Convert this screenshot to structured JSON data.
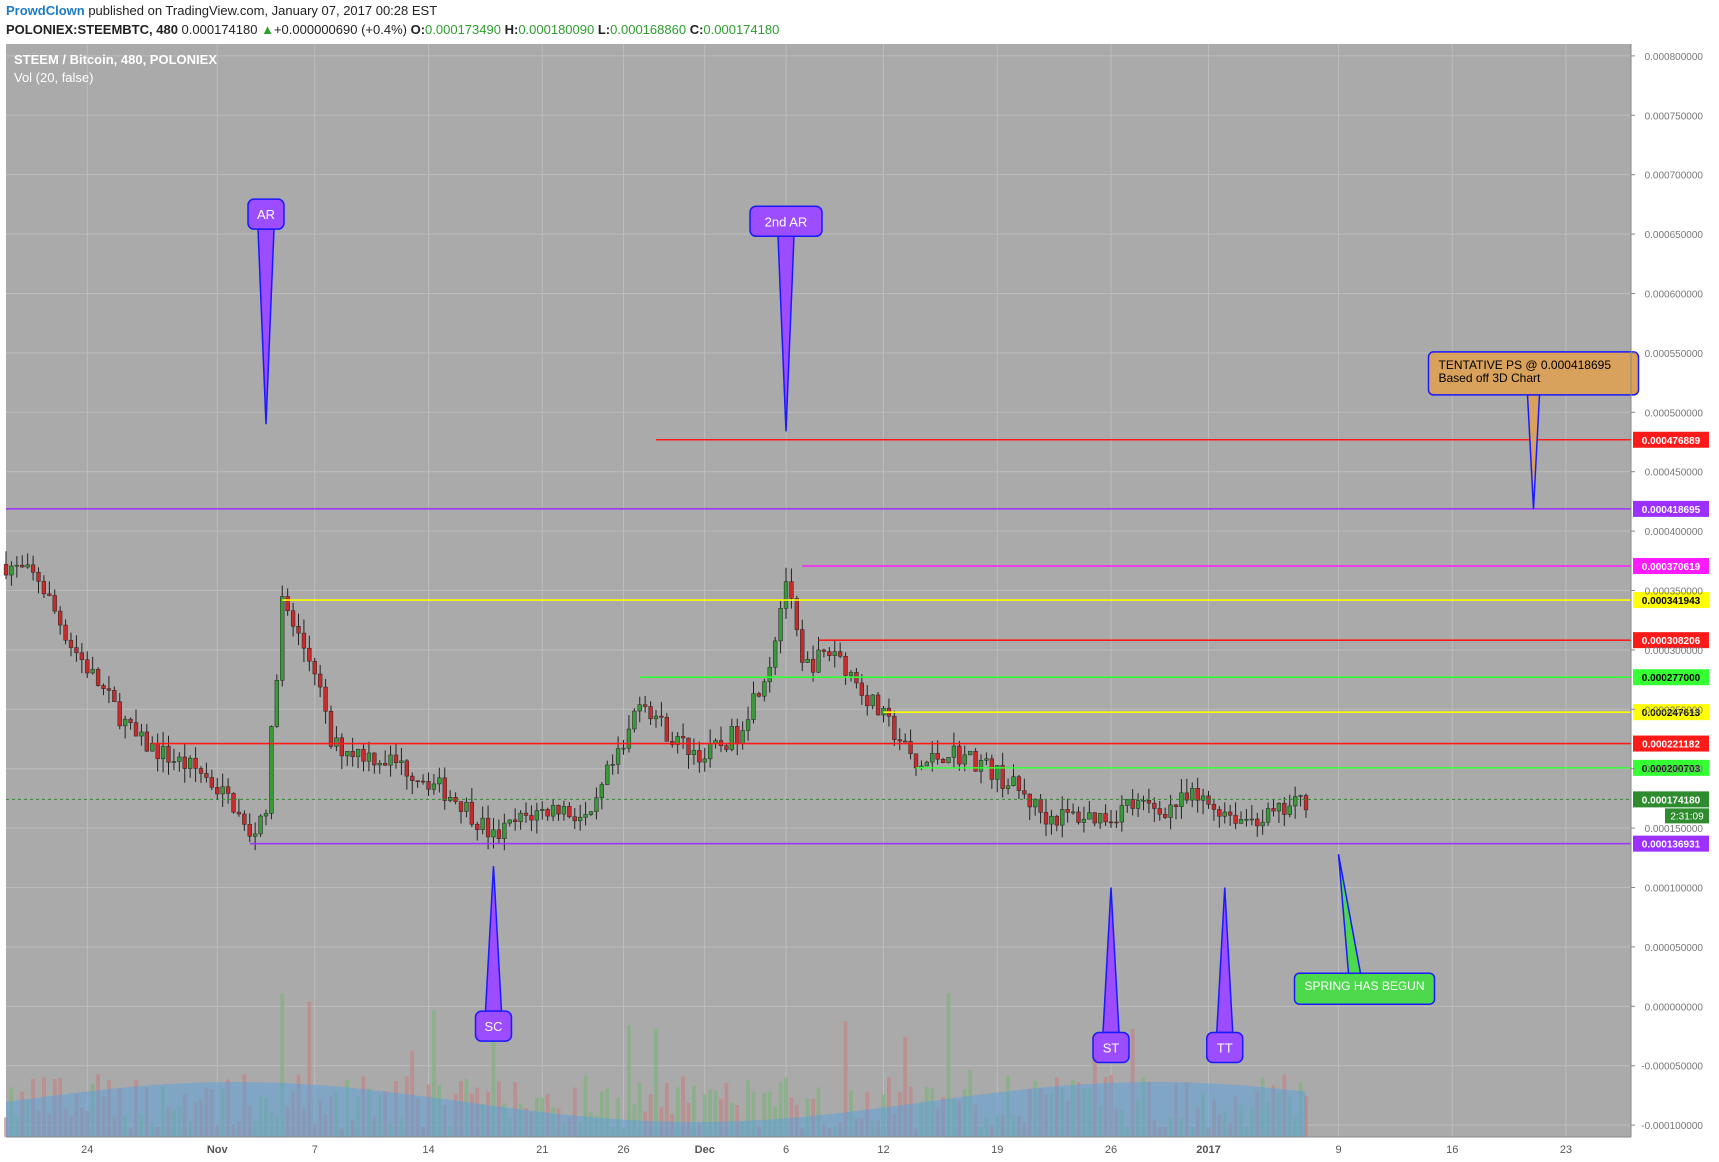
{
  "header": {
    "author": "ProwdClown",
    "published_text": " published on TradingView.com, January 07, 2017 00:28 EST",
    "symbol_line": "POLONIEX:STEEMBTC, 480",
    "last": "0.000174180",
    "change": "+0.000000690 (+0.4%)",
    "o_label": "O:",
    "o_value": "0.000173490",
    "h_label": "H:",
    "h_value": "0.000180090",
    "l_label": "L:",
    "l_value": "0.000168860",
    "c_label": "C:",
    "c_value": "0.000174180"
  },
  "chart_data": {
    "type": "candlestick",
    "title": "STEEM / Bitcoin, 480, POLONIEX",
    "indicator_label": "Vol (20, false)",
    "price_axis_labels": [
      "0.000800000",
      "0.000750000",
      "0.000700000",
      "0.000650000",
      "0.000600000",
      "0.000550000",
      "0.000500000",
      "0.000450000",
      "0.000400000",
      "0.000350000",
      "0.000300000",
      "0.000250000",
      "0.000200000",
      "0.000150000",
      "0.000100000",
      "0.000050000",
      "0.000000000",
      "-0.000050000",
      "-0.000100000"
    ],
    "price_axis_values": [
      0.0008,
      0.00075,
      0.0007,
      0.00065,
      0.0006,
      0.00055,
      0.0005,
      0.00045,
      0.0004,
      0.00035,
      0.0003,
      0.00025,
      0.0002,
      0.00015,
      0.0001,
      5e-05,
      0,
      -5e-05,
      -0.0001
    ],
    "x_tick_labels": [
      {
        "label": "24",
        "date": "2016-10-24"
      },
      {
        "label": "Nov",
        "date": "2016-11-01"
      },
      {
        "label": "7",
        "date": "2016-11-07"
      },
      {
        "label": "14",
        "date": "2016-11-14"
      },
      {
        "label": "21",
        "date": "2016-11-21"
      },
      {
        "label": "26",
        "date": "2016-11-26"
      },
      {
        "label": "Dec",
        "date": "2016-12-01"
      },
      {
        "label": "6",
        "date": "2016-12-06"
      },
      {
        "label": "12",
        "date": "2016-12-12"
      },
      {
        "label": "19",
        "date": "2016-12-19"
      },
      {
        "label": "26",
        "date": "2016-12-26"
      },
      {
        "label": "2017",
        "date": "2017-01-01"
      },
      {
        "label": "9",
        "date": "2017-01-09"
      },
      {
        "label": "16",
        "date": "2017-01-16"
      },
      {
        "label": "23",
        "date": "2017-01-23"
      }
    ],
    "x_range": [
      "2016-10-19",
      "2017-01-27"
    ],
    "y_range": [
      -0.00011,
      0.00081
    ],
    "grid": true,
    "price_path": [
      [
        "2016-10-19",
        0.000372
      ],
      [
        "2016-10-21",
        0.00036
      ],
      [
        "2016-10-23",
        0.000305
      ],
      [
        "2016-10-25",
        0.000265
      ],
      [
        "2016-10-27",
        0.000225
      ],
      [
        "2016-10-29",
        0.00021
      ],
      [
        "2016-10-31",
        0.000197
      ],
      [
        "2016-11-02",
        0.00017
      ],
      [
        "2016-11-03",
        0.00014
      ],
      [
        "2016-11-04",
        0.00017
      ],
      [
        "2016-11-05",
        0.00034
      ],
      [
        "2016-11-06",
        0.00031
      ],
      [
        "2016-11-07",
        0.000285
      ],
      [
        "2016-11-08",
        0.00022
      ],
      [
        "2016-11-10",
        0.000213
      ],
      [
        "2016-11-12",
        0.000205
      ],
      [
        "2016-11-14",
        0.00019
      ],
      [
        "2016-11-16",
        0.000172
      ],
      [
        "2016-11-18",
        0.000142
      ],
      [
        "2016-11-20",
        0.00016
      ],
      [
        "2016-11-22",
        0.000168
      ],
      [
        "2016-11-24",
        0.000155
      ],
      [
        "2016-11-25",
        0.000195
      ],
      [
        "2016-11-26",
        0.000215
      ],
      [
        "2016-11-27",
        0.000262
      ],
      [
        "2016-11-29",
        0.000225
      ],
      [
        "2016-12-01",
        0.00021
      ],
      [
        "2016-12-03",
        0.00023
      ],
      [
        "2016-12-05",
        0.00029
      ],
      [
        "2016-12-06",
        0.00036
      ],
      [
        "2016-12-07",
        0.000285
      ],
      [
        "2016-12-09",
        0.0003
      ],
      [
        "2016-12-11",
        0.00026
      ],
      [
        "2016-12-13",
        0.000225
      ],
      [
        "2016-12-14",
        0.0002
      ],
      [
        "2016-12-16",
        0.000215
      ],
      [
        "2016-12-18",
        0.000205
      ],
      [
        "2016-12-20",
        0.000185
      ],
      [
        "2016-12-22",
        0.00016
      ],
      [
        "2016-12-24",
        0.00016
      ],
      [
        "2016-12-26",
        0.00016
      ],
      [
        "2016-12-27",
        0.00017
      ],
      [
        "2016-12-29",
        0.000165
      ],
      [
        "2016-12-31",
        0.000175
      ],
      [
        "2017-01-02",
        0.000165
      ],
      [
        "2017-01-03",
        0.000158
      ],
      [
        "2017-01-05",
        0.00016
      ],
      [
        "2017-01-07",
        0.000174
      ]
    ],
    "last_price": "0.000174180",
    "countdown": "2:31:09",
    "horizontal_levels": [
      {
        "value": 0.000476889,
        "label": "0.000476889",
        "color": "#ff1a1a",
        "from": "2016-11-28"
      },
      {
        "value": 0.000418695,
        "label": "0.000418695",
        "color": "#9b30ff",
        "from": "2016-10-19"
      },
      {
        "value": 0.000370619,
        "label": "0.000370619",
        "color": "#ff1aff",
        "from": "2016-12-07"
      },
      {
        "value": 0.000341943,
        "label": "0.000341943",
        "color": "#ffff00",
        "from": "2016-11-05"
      },
      {
        "value": 0.000308206,
        "label": "0.000308206",
        "color": "#ff1a1a",
        "from": "2016-12-08"
      },
      {
        "value": 0.000277,
        "label": "0.000277000",
        "color": "#33ff33",
        "from": "2016-11-27"
      },
      {
        "value": 0.000247613,
        "label": "0.000247613",
        "color": "#ffff00",
        "from": "2016-12-12"
      },
      {
        "value": 0.000221182,
        "label": "0.000221182",
        "color": "#ff1a1a",
        "from": "2016-10-28"
      },
      {
        "value": 0.000200703,
        "label": "0.000200703",
        "color": "#33ff33",
        "from": "2016-12-14"
      },
      {
        "value": 0.000136931,
        "label": "0.000136931",
        "color": "#9b30ff",
        "from": "2016-11-03"
      }
    ],
    "annotations": [
      {
        "text": "AR",
        "date": "2016-11-04",
        "price": 0.00049,
        "direction": "down",
        "fill": "#9b4dff"
      },
      {
        "text": "2nd AR",
        "date": "2016-12-06",
        "price": 0.000484,
        "direction": "down",
        "fill": "#9b4dff"
      },
      {
        "text": "SC",
        "date": "2016-11-18",
        "price": 0.000118,
        "direction": "up",
        "fill": "#9b4dff"
      },
      {
        "text": "ST",
        "date": "2016-12-26",
        "price": 0.0001,
        "direction": "up",
        "fill": "#9b4dff"
      },
      {
        "text": "TT",
        "date": "2017-01-02",
        "price": 0.0001,
        "direction": "up",
        "fill": "#9b4dff"
      }
    ],
    "callouts": [
      {
        "lines": [
          "TENTATIVE PS @ 0.000418695",
          "Based off 3D Chart"
        ],
        "fill": "#d9a25c",
        "target_date": "2017-01-21",
        "target_price": 0.000418695
      },
      {
        "lines": [
          "SPRING HAS BEGUN"
        ],
        "fill": "#4cd94c",
        "target_date": "2017-01-09",
        "target_price": 0.000128
      }
    ]
  }
}
